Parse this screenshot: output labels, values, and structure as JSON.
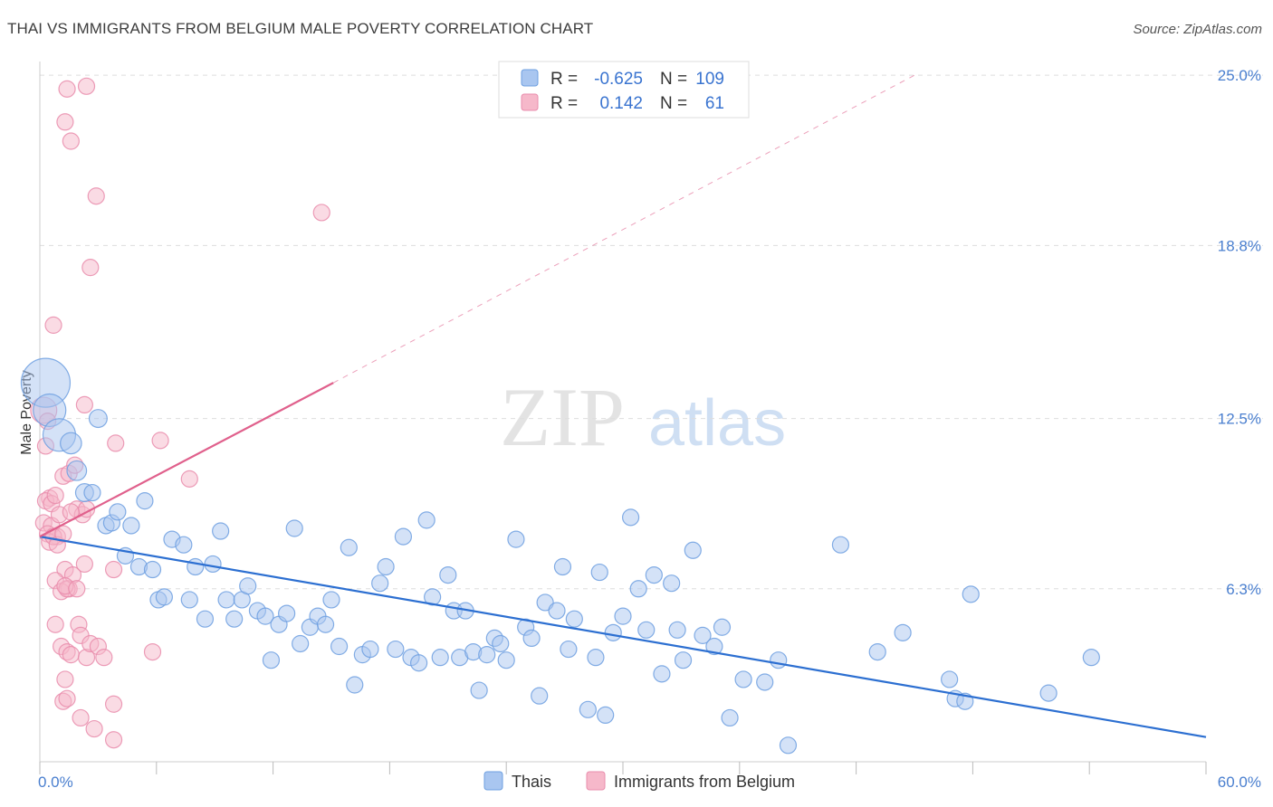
{
  "header": {
    "title": "THAI VS IMMIGRANTS FROM BELGIUM MALE POVERTY CORRELATION CHART",
    "source": "Source: ZipAtlas.com"
  },
  "watermark": {
    "zip": "ZIP",
    "atlas": "atlas"
  },
  "colors": {
    "thai_fill": "#a9c6f0",
    "thai_stroke": "#6d9fe0",
    "thai_line": "#2c6fd1",
    "belgium_fill": "#f6b8ca",
    "belgium_stroke": "#e98cac",
    "belgium_line": "#e0608c",
    "grid": "#dddddd",
    "tick_label": "#4a7fcf"
  },
  "legend": {
    "r_label": "R =",
    "n_label": "N =",
    "rows": [
      {
        "r": "-0.625",
        "n": "109"
      },
      {
        "r": "0.142",
        "n": "61"
      }
    ]
  },
  "bottom_legend": [
    "Thais",
    "Immigrants from Belgium"
  ],
  "chart_data": {
    "type": "scatter",
    "xlabel": "",
    "ylabel": "Male Poverty",
    "xlim": [
      0,
      60
    ],
    "ylim": [
      0,
      25.5
    ],
    "x_tick_labels": [
      "0.0%",
      "60.0%"
    ],
    "y_ticks": [
      6.3,
      12.5,
      18.8,
      25.0
    ],
    "y_tick_labels": [
      "6.3%",
      "12.5%",
      "18.8%",
      "25.0%"
    ],
    "grid": true,
    "legend_position": "top-center",
    "series": [
      {
        "name": "Thais",
        "r": -0.625,
        "n": 109,
        "trend": {
          "x0": 0,
          "y0": 8.2,
          "x1": 60,
          "y1": 0.9
        },
        "points": [
          [
            0.3,
            13.8,
            3
          ],
          [
            0.5,
            12.8,
            2
          ],
          [
            1.0,
            11.9,
            2
          ],
          [
            1.6,
            11.6,
            1.3
          ],
          [
            3.0,
            12.5,
            1.1
          ],
          [
            1.9,
            10.6,
            1.2
          ],
          [
            2.3,
            9.8,
            1.1
          ],
          [
            2.7,
            9.8,
            1
          ],
          [
            3.4,
            8.6,
            1
          ],
          [
            3.7,
            8.7,
            1
          ],
          [
            4.0,
            9.1,
            1
          ],
          [
            4.7,
            8.6,
            1
          ],
          [
            5.4,
            9.5,
            1
          ],
          [
            4.4,
            7.5,
            1
          ],
          [
            5.1,
            7.1,
            1
          ],
          [
            5.8,
            7.0,
            1
          ],
          [
            6.1,
            5.9,
            1
          ],
          [
            6.4,
            6.0,
            1
          ],
          [
            6.8,
            8.1,
            1
          ],
          [
            7.4,
            7.9,
            1
          ],
          [
            7.7,
            5.9,
            1
          ],
          [
            8.0,
            7.1,
            1
          ],
          [
            8.5,
            5.2,
            1
          ],
          [
            8.9,
            7.2,
            1
          ],
          [
            9.3,
            8.4,
            1
          ],
          [
            9.6,
            5.9,
            1
          ],
          [
            10.0,
            5.2,
            1
          ],
          [
            10.4,
            5.9,
            1
          ],
          [
            10.7,
            6.4,
            1
          ],
          [
            11.2,
            5.5,
            1
          ],
          [
            11.6,
            5.3,
            1
          ],
          [
            11.9,
            3.7,
            1
          ],
          [
            12.3,
            5.0,
            1
          ],
          [
            12.7,
            5.4,
            1
          ],
          [
            13.1,
            8.5,
            1
          ],
          [
            13.4,
            4.3,
            1
          ],
          [
            13.9,
            4.9,
            1
          ],
          [
            14.3,
            5.3,
            1
          ],
          [
            14.7,
            5.0,
            1
          ],
          [
            15.0,
            5.9,
            1
          ],
          [
            15.4,
            4.2,
            1
          ],
          [
            15.9,
            7.8,
            1
          ],
          [
            16.2,
            2.8,
            1
          ],
          [
            16.6,
            3.9,
            1
          ],
          [
            17.0,
            4.1,
            1
          ],
          [
            17.5,
            6.5,
            1
          ],
          [
            17.8,
            7.1,
            1
          ],
          [
            18.3,
            4.1,
            1
          ],
          [
            18.7,
            8.2,
            1
          ],
          [
            19.1,
            3.8,
            1
          ],
          [
            19.5,
            3.6,
            1
          ],
          [
            19.9,
            8.8,
            1
          ],
          [
            20.2,
            6.0,
            1
          ],
          [
            20.6,
            3.8,
            1
          ],
          [
            21.0,
            6.8,
            1
          ],
          [
            21.3,
            5.5,
            1
          ],
          [
            21.6,
            3.8,
            1
          ],
          [
            21.9,
            5.5,
            1
          ],
          [
            22.3,
            4.0,
            1
          ],
          [
            22.6,
            2.6,
            1
          ],
          [
            23.0,
            3.9,
            1
          ],
          [
            23.4,
            4.5,
            1
          ],
          [
            23.7,
            4.3,
            1
          ],
          [
            24.0,
            3.7,
            1
          ],
          [
            24.5,
            8.1,
            1
          ],
          [
            25.0,
            4.9,
            1
          ],
          [
            25.3,
            4.5,
            1
          ],
          [
            25.7,
            2.4,
            1
          ],
          [
            26.0,
            5.8,
            1
          ],
          [
            26.6,
            5.5,
            1
          ],
          [
            26.9,
            7.1,
            1
          ],
          [
            27.2,
            4.1,
            1
          ],
          [
            27.5,
            5.2,
            1
          ],
          [
            28.2,
            1.9,
            1
          ],
          [
            28.6,
            3.8,
            1
          ],
          [
            28.8,
            6.9,
            1
          ],
          [
            29.1,
            1.7,
            1
          ],
          [
            29.5,
            4.7,
            1
          ],
          [
            30.0,
            5.3,
            1
          ],
          [
            30.4,
            8.9,
            1
          ],
          [
            30.8,
            6.3,
            1
          ],
          [
            31.2,
            4.8,
            1
          ],
          [
            31.6,
            6.8,
            1
          ],
          [
            32.0,
            3.2,
            1
          ],
          [
            32.5,
            6.5,
            1
          ],
          [
            32.8,
            4.8,
            1
          ],
          [
            33.1,
            3.7,
            1
          ],
          [
            33.6,
            7.7,
            1
          ],
          [
            34.1,
            4.6,
            1
          ],
          [
            34.7,
            4.2,
            1
          ],
          [
            35.1,
            4.9,
            1
          ],
          [
            35.5,
            1.6,
            1
          ],
          [
            36.2,
            3.0,
            1
          ],
          [
            37.3,
            2.9,
            1
          ],
          [
            38.0,
            3.7,
            1
          ],
          [
            38.5,
            0.6,
            1
          ],
          [
            41.2,
            7.9,
            1
          ],
          [
            43.1,
            4.0,
            1
          ],
          [
            44.4,
            4.7,
            1
          ],
          [
            46.8,
            3.0,
            1
          ],
          [
            47.1,
            2.3,
            1
          ],
          [
            47.6,
            2.2,
            1
          ],
          [
            47.9,
            6.1,
            1
          ],
          [
            51.9,
            2.5,
            1
          ],
          [
            54.1,
            3.8,
            1
          ]
        ]
      },
      {
        "name": "Immigrants from Belgium",
        "r": 0.142,
        "n": 61,
        "trend": {
          "x0": 0,
          "y0": 8.2,
          "x1": 15.1,
          "y1": 13.8,
          "dash_x1": 45,
          "dash_y1": 25.0
        },
        "points": [
          [
            0.2,
            12.8,
            1.6
          ],
          [
            0.3,
            11.5,
            1
          ],
          [
            0.5,
            9.6,
            1
          ],
          [
            0.3,
            9.5,
            1
          ],
          [
            0.6,
            9.4,
            1
          ],
          [
            0.8,
            9.7,
            1
          ],
          [
            0.2,
            8.7,
            1
          ],
          [
            0.6,
            8.6,
            1
          ],
          [
            0.4,
            8.3,
            1
          ],
          [
            0.9,
            8.2,
            1
          ],
          [
            0.5,
            8.0,
            1
          ],
          [
            0.7,
            8.2,
            1
          ],
          [
            0.9,
            7.9,
            1
          ],
          [
            1.2,
            8.3,
            1
          ],
          [
            1.0,
            9.0,
            1
          ],
          [
            0.4,
            12.4,
            1
          ],
          [
            0.7,
            15.9,
            1
          ],
          [
            1.3,
            7.0,
            1
          ],
          [
            1.5,
            6.3,
            1
          ],
          [
            0.8,
            6.6,
            1
          ],
          [
            1.1,
            6.2,
            1
          ],
          [
            1.4,
            6.3,
            1
          ],
          [
            1.7,
            6.8,
            1
          ],
          [
            1.3,
            6.4,
            1
          ],
          [
            1.9,
            6.3,
            1
          ],
          [
            1.2,
            10.4,
            1
          ],
          [
            1.5,
            10.5,
            1
          ],
          [
            1.8,
            10.8,
            1
          ],
          [
            1.9,
            9.2,
            1
          ],
          [
            2.2,
            9.0,
            1
          ],
          [
            2.4,
            9.2,
            1
          ],
          [
            1.6,
            9.1,
            1
          ],
          [
            0.8,
            5.0,
            1
          ],
          [
            1.1,
            4.2,
            1
          ],
          [
            1.4,
            4.0,
            1
          ],
          [
            1.6,
            3.9,
            1
          ],
          [
            2.0,
            5.0,
            1
          ],
          [
            2.1,
            4.6,
            1
          ],
          [
            2.4,
            3.8,
            1
          ],
          [
            2.6,
            4.3,
            1
          ],
          [
            3.0,
            4.2,
            1
          ],
          [
            3.3,
            3.8,
            1
          ],
          [
            1.3,
            3.0,
            1
          ],
          [
            1.2,
            2.2,
            1
          ],
          [
            1.4,
            2.3,
            1
          ],
          [
            2.1,
            1.6,
            1
          ],
          [
            2.8,
            1.2,
            1
          ],
          [
            3.8,
            2.1,
            1
          ],
          [
            3.8,
            0.8,
            1
          ],
          [
            2.3,
            13.0,
            1
          ],
          [
            3.9,
            11.6,
            1
          ],
          [
            6.2,
            11.7,
            1
          ],
          [
            7.7,
            10.3,
            1
          ],
          [
            5.8,
            4.0,
            1
          ],
          [
            2.3,
            7.2,
            1
          ],
          [
            3.8,
            7.0,
            1
          ],
          [
            1.3,
            23.3,
            1
          ],
          [
            1.6,
            22.6,
            1
          ],
          [
            1.4,
            24.5,
            1
          ],
          [
            2.4,
            24.6,
            1
          ],
          [
            2.9,
            20.6,
            1
          ],
          [
            14.5,
            20.0,
            1
          ],
          [
            2.6,
            18.0,
            1
          ]
        ]
      }
    ]
  }
}
